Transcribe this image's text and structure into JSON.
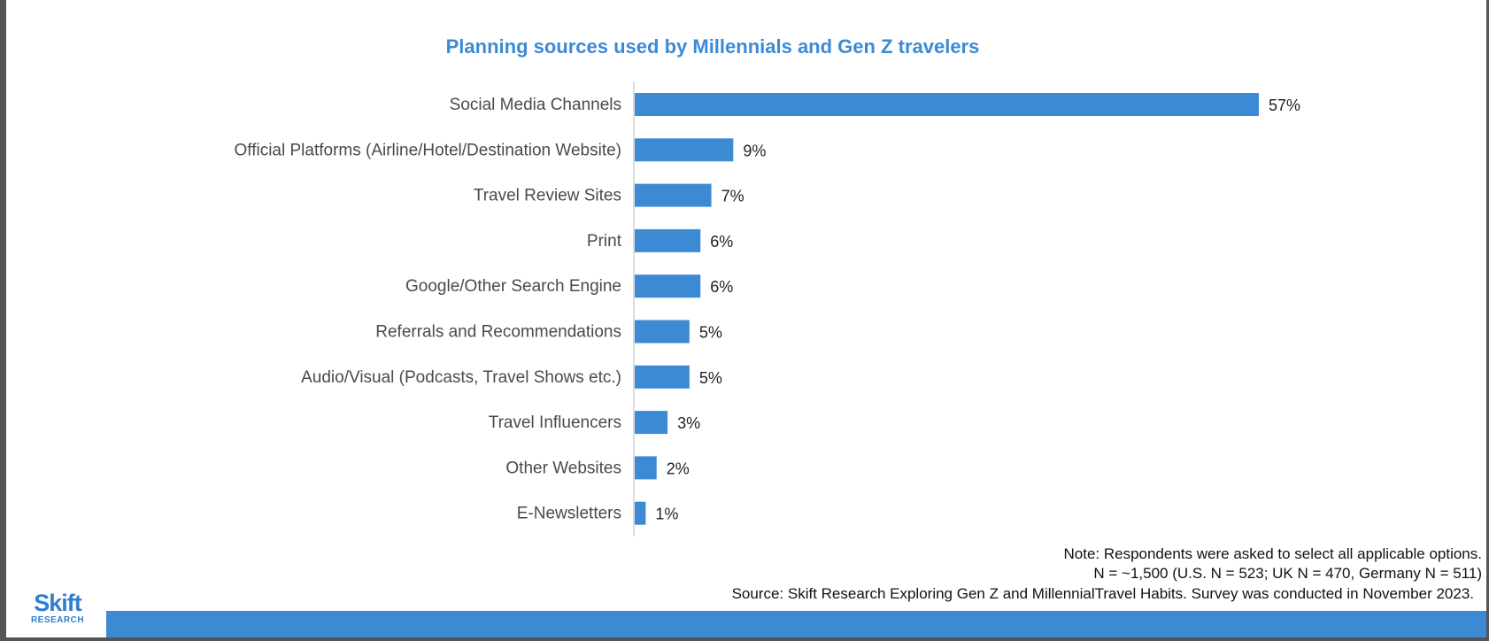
{
  "chart_data": {
    "type": "bar",
    "orientation": "horizontal",
    "title": "Planning sources used by Millennials and Gen Z travelers",
    "categories": [
      "Social Media Channels",
      "Official Platforms (Airline/Hotel/Destination Website)",
      "Travel Review Sites",
      "Print",
      "Google/Other Search Engine",
      "Referrals and Recommendations",
      "Audio/Visual (Podcasts, Travel Shows etc.)",
      "Travel Influencers",
      "Other Websites",
      "E-Newsletters"
    ],
    "values": [
      57,
      9,
      7,
      6,
      6,
      5,
      5,
      3,
      2,
      1
    ],
    "data_labels": [
      "57%",
      "9%",
      "7%",
      "6%",
      "6%",
      "5%",
      "5%",
      "3%",
      "2%",
      "1%"
    ],
    "xlim": [
      0,
      57
    ],
    "grid": false,
    "legend": "none"
  },
  "notes": {
    "line1": "Note: Respondents were asked to select all applicable options.",
    "line2": "N = ~1,500 (U.S.  N = 523; UK N = 470, Germany N = 511)",
    "line3": "Source: Skift Research Exploring Gen Z and MillennialTravel Habits. Survey was conducted in November 2023."
  },
  "logo": {
    "main": "Skift",
    "sub": "RESEARCH"
  },
  "colors": {
    "bar": "#3d8ad4",
    "title": "#3d8ad4",
    "label": "#4a4a4a",
    "value_label": "#222222",
    "axis": "#cfcfcf",
    "footer_bar": "#3d8ad4",
    "logo": "#2f7fd0"
  }
}
